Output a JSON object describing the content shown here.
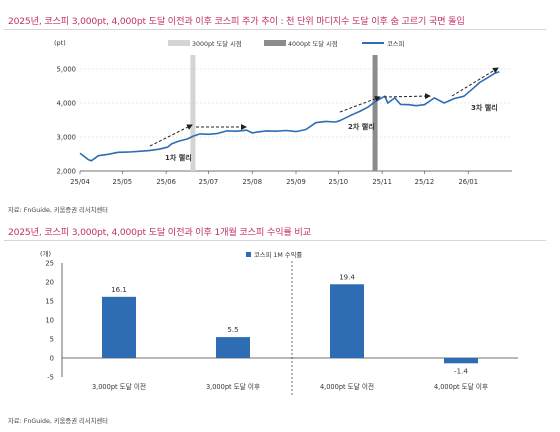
{
  "chart1": {
    "title": "2025년, 코스피 3,000pt, 4,000pt 도달 이전과 이후 코스피 주가 추이 : 천 단위 마디지수 도달 이후 숨 고르기 국면 돌입",
    "unit": "(pt)",
    "source": "자료: FnGuide, 키움증권 리서치센터",
    "colors": {
      "line": "#2e6db4",
      "marker3000": "#d4d4d4",
      "marker4000": "#8c8c8c"
    },
    "legend": [
      {
        "label": "3000pt 도달 시점",
        "kind": "band",
        "color": "#d4d4d4"
      },
      {
        "label": "4000pt 도달 시점",
        "kind": "band",
        "color": "#8c8c8c"
      },
      {
        "label": "코스피",
        "kind": "line",
        "color": "#2e6db4"
      }
    ],
    "annotations": [
      "1차 랠리",
      "2차 랠리",
      "3차 랠리"
    ],
    "chart_data": {
      "type": "line",
      "x_ticks": [
        "25/04",
        "25/05",
        "25/06",
        "25/07",
        "25/08",
        "25/09",
        "25/10",
        "25/11",
        "25/12",
        "26/01"
      ],
      "y_ticks": [
        "2,000",
        "3,000",
        "4,000",
        "5,000"
      ],
      "ylim": [
        2000,
        5000
      ],
      "series": [
        {
          "name": "코스피",
          "points": [
            [
              "2025-04-01",
              2520
            ],
            [
              "2025-04-07",
              2330
            ],
            [
              "2025-04-09",
              2300
            ],
            [
              "2025-04-14",
              2450
            ],
            [
              "2025-04-21",
              2490
            ],
            [
              "2025-04-28",
              2550
            ],
            [
              "2025-05-06",
              2560
            ],
            [
              "2025-05-13",
              2580
            ],
            [
              "2025-05-20",
              2600
            ],
            [
              "2025-05-27",
              2640
            ],
            [
              "2025-06-02",
              2700
            ],
            [
              "2025-06-05",
              2800
            ],
            [
              "2025-06-10",
              2880
            ],
            [
              "2025-06-16",
              2940
            ],
            [
              "2025-06-20",
              3020
            ],
            [
              "2025-06-25",
              3090
            ],
            [
              "2025-07-01",
              3080
            ],
            [
              "2025-07-07",
              3100
            ],
            [
              "2025-07-14",
              3180
            ],
            [
              "2025-07-21",
              3170
            ],
            [
              "2025-07-28",
              3200
            ],
            [
              "2025-08-01",
              3120
            ],
            [
              "2025-08-05",
              3150
            ],
            [
              "2025-08-11",
              3180
            ],
            [
              "2025-08-18",
              3170
            ],
            [
              "2025-08-25",
              3190
            ],
            [
              "2025-09-01",
              3160
            ],
            [
              "2025-09-08",
              3220
            ],
            [
              "2025-09-15",
              3420
            ],
            [
              "2025-09-22",
              3460
            ],
            [
              "2025-09-29",
              3440
            ],
            [
              "2025-10-02",
              3480
            ],
            [
              "2025-10-10",
              3640
            ],
            [
              "2025-10-16",
              3750
            ],
            [
              "2025-10-22",
              3880
            ],
            [
              "2025-10-27",
              4040
            ],
            [
              "2025-11-03",
              4200
            ],
            [
              "2025-11-05",
              4000
            ],
            [
              "2025-11-10",
              4150
            ],
            [
              "2025-11-14",
              3960
            ],
            [
              "2025-11-20",
              3950
            ],
            [
              "2025-11-25",
              3920
            ],
            [
              "2025-12-01",
              3950
            ],
            [
              "2025-12-08",
              4150
            ],
            [
              "2025-12-15",
              4000
            ],
            [
              "2025-12-22",
              4130
            ],
            [
              "2025-12-29",
              4200
            ],
            [
              "2026-01-05",
              4450
            ],
            [
              "2026-01-09",
              4600
            ],
            [
              "2026-01-15",
              4750
            ],
            [
              "2026-01-20",
              4880
            ],
            [
              "2026-01-23",
              4920
            ]
          ]
        }
      ],
      "event_markers": [
        {
          "label": "3000pt 도달 시점",
          "date": "2025-06-20"
        },
        {
          "label": "4000pt 도달 시점",
          "date": "2025-10-27"
        }
      ]
    }
  },
  "chart2": {
    "title": "2025년, 코스피 3,000pt, 4,000pt 도달 이전과 이후 1개월 코스피 수익률 비교",
    "unit": "(개)",
    "source": "자료: FnGuide, 키움증권 리서치센터",
    "colors": {
      "bar": "#2e6db4"
    },
    "legend": [
      {
        "label": "코스피 1M 수익률",
        "kind": "box",
        "color": "#2e6db4"
      }
    ],
    "chart_data": {
      "type": "bar",
      "categories": [
        "3,000pt 도달 이전",
        "3,000pt 도달 이후",
        "4,000pt 도달 이전",
        "4,000pt 도달 이후"
      ],
      "series": [
        {
          "name": "코스피 1M 수익률",
          "values": [
            16.1,
            5.5,
            19.4,
            -1.4
          ]
        }
      ],
      "value_labels": [
        "16.1",
        "5.5",
        "19.4",
        "-1.4"
      ],
      "y_ticks": [
        "-5",
        "0",
        "5",
        "10",
        "15",
        "20",
        "25"
      ],
      "ylim": [
        -5,
        25
      ]
    }
  }
}
